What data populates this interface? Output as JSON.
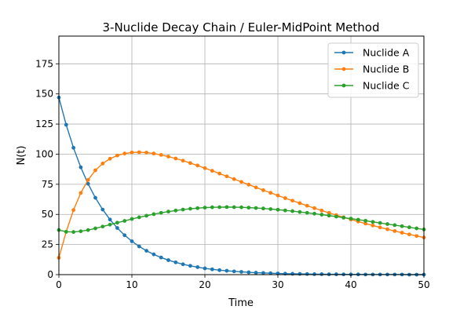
{
  "chart_data": {
    "type": "line",
    "title": "3-Nuclide Decay Chain / Euler-MidPoint Method",
    "xlabel": "Time",
    "ylabel": "N(t)",
    "xlim": [
      0,
      50
    ],
    "ylim": [
      0,
      198
    ],
    "xticks": [
      0,
      10,
      20,
      30,
      40,
      50
    ],
    "yticks": [
      0,
      25,
      50,
      75,
      100,
      125,
      150,
      175
    ],
    "grid": true,
    "legend_position": "top-right",
    "x": [
      0,
      1,
      2,
      3,
      4,
      5,
      6,
      7,
      8,
      9,
      10,
      11,
      12,
      13,
      14,
      15,
      16,
      17,
      18,
      19,
      20,
      21,
      22,
      23,
      24,
      25,
      26,
      27,
      28,
      29,
      30,
      31,
      32,
      33,
      34,
      35,
      36,
      37,
      38,
      39,
      40,
      41,
      42,
      43,
      44,
      45,
      46,
      47,
      48,
      49,
      50
    ],
    "series": [
      {
        "name": "Nuclide A",
        "color": "#1f77b4",
        "values": [
          147,
          124.4,
          105.3,
          89.1,
          75.4,
          63.8,
          54.0,
          45.7,
          38.7,
          32.7,
          27.7,
          23.4,
          19.8,
          16.8,
          14.2,
          12.0,
          10.2,
          8.6,
          7.3,
          6.2,
          5.2,
          4.4,
          3.7,
          3.2,
          2.7,
          2.3,
          1.9,
          1.6,
          1.4,
          1.2,
          1.0,
          0.8,
          0.7,
          0.6,
          0.5,
          0.4,
          0.4,
          0.3,
          0.3,
          0.2,
          0.2,
          0.2,
          0.1,
          0.1,
          0.1,
          0.1,
          0.1,
          0.1,
          0.0,
          0.0,
          0.0
        ]
      },
      {
        "name": "Nuclide B",
        "color": "#ff7f0e",
        "values": [
          14,
          35.5,
          53.6,
          67.8,
          78.6,
          86.6,
          92.2,
          96.2,
          98.9,
          100.5,
          101.4,
          101.6,
          101.3,
          100.5,
          99.4,
          98.0,
          96.4,
          94.6,
          92.6,
          90.6,
          88.4,
          86.2,
          83.9,
          81.6,
          79.3,
          77.0,
          74.7,
          72.4,
          70.1,
          67.9,
          65.7,
          63.5,
          61.4,
          59.3,
          57.2,
          55.2,
          53.2,
          51.3,
          49.4,
          47.6,
          45.8,
          44.1,
          42.4,
          40.8,
          39.2,
          37.7,
          36.2,
          34.8,
          33.4,
          32.1,
          30.8
        ]
      },
      {
        "name": "Nuclide C",
        "color": "#2ca02c",
        "values": [
          37,
          35.6,
          35.4,
          36.0,
          37.0,
          38.4,
          39.9,
          41.5,
          43.1,
          44.6,
          46.2,
          47.6,
          48.9,
          50.2,
          51.3,
          52.3,
          53.2,
          54.0,
          54.7,
          55.2,
          55.6,
          55.9,
          56.0,
          56.1,
          56.0,
          55.9,
          55.6,
          55.3,
          54.9,
          54.4,
          53.9,
          53.3,
          52.7,
          52.0,
          51.3,
          50.6,
          49.8,
          49.0,
          48.2,
          47.3,
          46.5,
          45.6,
          44.7,
          43.8,
          42.9,
          42.0,
          41.1,
          40.2,
          39.3,
          38.4,
          37.5
        ]
      }
    ]
  }
}
